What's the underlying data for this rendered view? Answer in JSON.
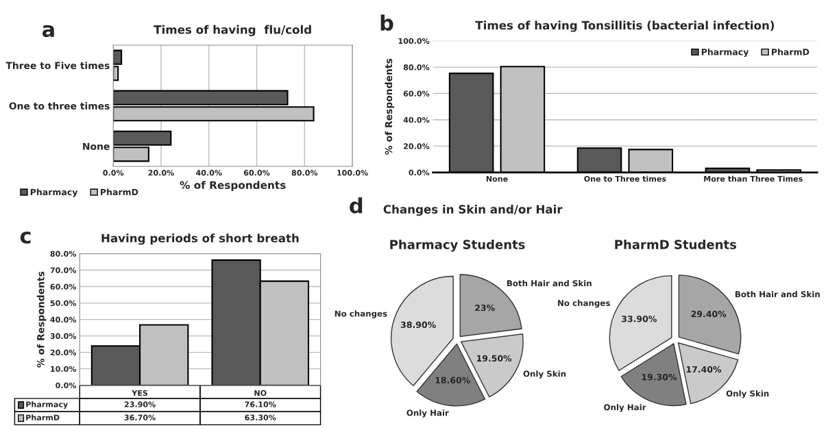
{
  "chart_data": [
    {
      "type": "bar",
      "orientation": "horizontal",
      "title": "Times of having  flu/cold",
      "xlabel": "% of Respondents",
      "annotations": [
        "a"
      ],
      "categories": [
        "Three to Five times",
        "One to three times",
        "None"
      ],
      "series": [
        {
          "name": "Pharmacy",
          "color": "#595959",
          "values": [
            3.4,
            72.9,
            24.1
          ]
        },
        {
          "name": "PharmD",
          "color": "#c0c0c0",
          "values": [
            2.0,
            83.8,
            14.8
          ]
        }
      ],
      "xlim": [
        0,
        100
      ],
      "xticks": [
        {
          "value": 0,
          "label": "0.0%"
        },
        {
          "value": 20,
          "label": "20.0%"
        },
        {
          "value": 40,
          "label": "40.0%"
        },
        {
          "value": 60,
          "label": "60.0%"
        },
        {
          "value": 80,
          "label": "80.0%"
        },
        {
          "value": 100,
          "label": "100.0%"
        }
      ],
      "grid": "x",
      "legend": "bottom left"
    },
    {
      "type": "bar",
      "title": "Times of having Tonsillitis (bacterial infection)",
      "ylabel": "% of Respondents",
      "annotations": [
        "b"
      ],
      "categories": [
        "None",
        "One to Three times",
        "More than Three Times"
      ],
      "series": [
        {
          "name": "Pharmacy",
          "color": "#595959",
          "values": [
            75.3,
            18.5,
            3.1
          ]
        },
        {
          "name": "PharmD",
          "color": "#c0c0c0",
          "values": [
            80.4,
            17.4,
            1.8
          ]
        }
      ],
      "ylim": [
        0,
        100
      ],
      "yticks": [
        {
          "value": 0,
          "label": "0.0%"
        },
        {
          "value": 20,
          "label": "20.0%"
        },
        {
          "value": 40,
          "label": "40.0%"
        },
        {
          "value": 60,
          "label": "60.0%"
        },
        {
          "value": 80,
          "label": "80.0%"
        },
        {
          "value": 100,
          "label": "100.0%"
        }
      ],
      "grid": "y",
      "legend": "top right"
    },
    {
      "type": "bar",
      "title": "Having periods of short breath",
      "ylabel": "% of Respondents",
      "annotations": [
        "c"
      ],
      "categories": [
        "YES",
        "NO"
      ],
      "series": [
        {
          "name": "Pharmacy",
          "color": "#595959",
          "values": [
            23.9,
            76.1
          ],
          "value_labels": [
            "23.90%",
            "76.10%"
          ]
        },
        {
          "name": "PharmD",
          "color": "#c0c0c0",
          "values": [
            36.7,
            63.3
          ],
          "value_labels": [
            "36.70%",
            "63.30%"
          ]
        }
      ],
      "ylim": [
        0,
        80
      ],
      "yticks": [
        {
          "value": 0,
          "label": "0.0%"
        },
        {
          "value": 10,
          "label": "10.0%"
        },
        {
          "value": 20,
          "label": "20.0%"
        },
        {
          "value": 30,
          "label": "30.0%"
        },
        {
          "value": 40,
          "label": "40.0%"
        },
        {
          "value": 50,
          "label": "50.0%"
        },
        {
          "value": 60,
          "label": "60.0%"
        },
        {
          "value": 70,
          "label": "70.0%"
        },
        {
          "value": 80,
          "label": "80.0%"
        }
      ],
      "grid": "y",
      "legend": "left"
    },
    {
      "type": "pie",
      "title": "Changes in Skin and/or Hair",
      "subtitle": "Pharmacy Students",
      "annotations": [
        "d"
      ],
      "categories": [
        "Both Hair and Skin",
        "Only Skin",
        "Only Hair",
        "No changes"
      ],
      "values": [
        23,
        19.5,
        18.6,
        38.9
      ],
      "value_labels": [
        "23%",
        "19.50%",
        "18.60%",
        "38.90%"
      ],
      "colors": [
        "#a6a6a6",
        "#cacaca",
        "#808080",
        "#dcdcdc"
      ]
    },
    {
      "type": "pie",
      "title": "PharmD Students",
      "categories": [
        "Both Hair and Skin",
        "Only Skin",
        "Only Hair",
        "No changes"
      ],
      "values": [
        29.4,
        17.4,
        19.3,
        33.9
      ],
      "value_labels": [
        "29.40%",
        "17.40%",
        "19.30%",
        "33.90%"
      ],
      "colors": [
        "#a6a6a6",
        "#cacaca",
        "#808080",
        "#dcdcdc"
      ]
    }
  ]
}
